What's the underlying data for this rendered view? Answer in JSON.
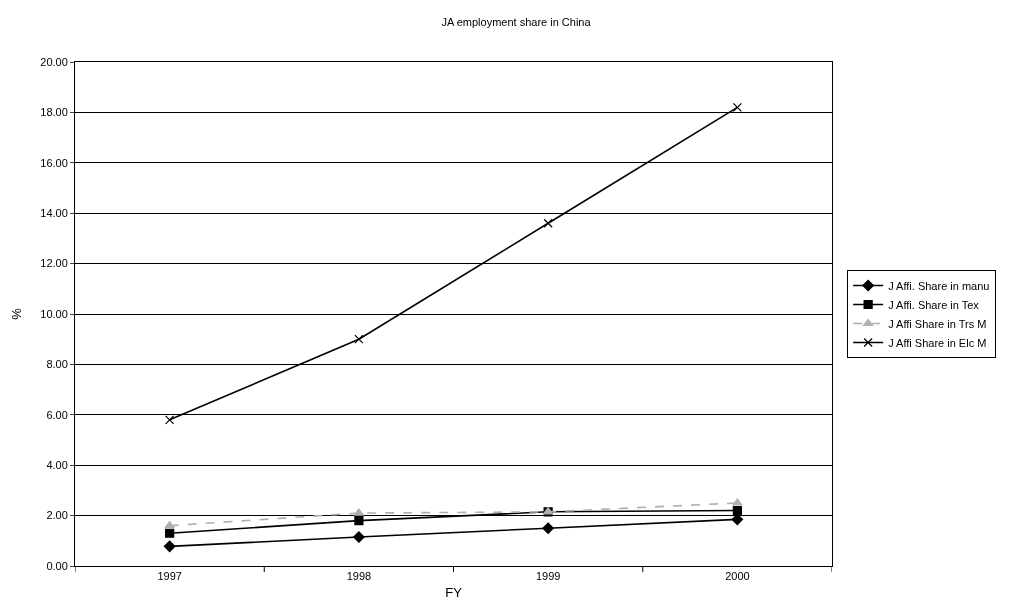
{
  "chart_data": {
    "type": "line",
    "title": "JA employment share in China",
    "xlabel": "FY",
    "ylabel": "%",
    "categories": [
      "1997",
      "1998",
      "1999",
      "2000"
    ],
    "series": [
      {
        "name": "J Affi. Share in manu",
        "color": "#000000",
        "marker": "diamond",
        "line_style": "solid",
        "values": [
          0.78,
          1.15,
          1.5,
          1.85
        ]
      },
      {
        "name": "J Affi. Share in Tex",
        "color": "#000000",
        "marker": "square",
        "line_style": "solid",
        "values": [
          1.3,
          1.8,
          2.15,
          2.2
        ]
      },
      {
        "name": "J Affi Share in Trs M",
        "color": "#b0b0b0",
        "marker": "triangle",
        "line_style": "dashed",
        "values": [
          1.6,
          2.1,
          2.15,
          2.5
        ]
      },
      {
        "name": "J Affi Share in Elc M",
        "color": "#000000",
        "marker": "cross",
        "line_style": "solid",
        "values": [
          5.8,
          9.0,
          13.6,
          18.2
        ]
      }
    ],
    "ylim": [
      0,
      20
    ],
    "yticks": [
      {
        "value": 0,
        "label": "0.00"
      },
      {
        "value": 2,
        "label": "2.00"
      },
      {
        "value": 4,
        "label": "4.00"
      },
      {
        "value": 6,
        "label": "6.00"
      },
      {
        "value": 8,
        "label": "8.00"
      },
      {
        "value": 10,
        "label": "10.00"
      },
      {
        "value": 12,
        "label": "12.00"
      },
      {
        "value": 14,
        "label": "14.00"
      },
      {
        "value": 16,
        "label": "16.00"
      },
      {
        "value": 18,
        "label": "18.00"
      },
      {
        "value": 20,
        "label": "20.00"
      }
    ],
    "grid": "y",
    "legend": "right"
  }
}
